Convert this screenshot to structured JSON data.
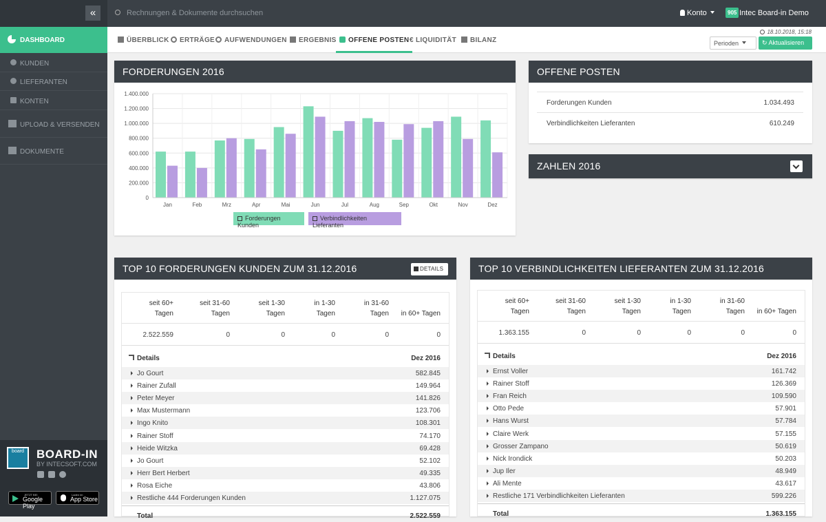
{
  "sidebar": {
    "dashboard": "DASHBOARD",
    "items": [
      "KUNDEN",
      "LIEFERANTEN",
      "KONTEN"
    ],
    "upload": "UPLOAD & VERSENDEN",
    "dokumente": "DOKUMENTE",
    "brand_name": "BOARD-IN",
    "brand_sub": "BY INTECSOFT.COM",
    "logo_text": "board",
    "google_small": "JETZT BEI",
    "google_big": "Google Play",
    "apple_small": "Laden im",
    "apple_big": "App Store"
  },
  "topbar": {
    "search_placeholder": "Rechnungen & Dokumente durchsuchen",
    "konto": "Konto",
    "badge": "905",
    "company": "Intec Board-in Demo"
  },
  "tabs": [
    "ÜBERBLICK",
    "ERTRÄGE",
    "AUFWENDUNGEN",
    "ERGEBNIS",
    "OFFENE POSTEN",
    "€ LIQUIDITÄT",
    "BILANZ"
  ],
  "active_tab": "OFFENE POSTEN",
  "tabbar": {
    "date": "18.10.2018, 15:18",
    "perioden": "Perioden",
    "aktualisieren": "Aktualisieren"
  },
  "forderungen_panel": {
    "title": "FORDERUNGEN 2016"
  },
  "chart_data": {
    "type": "bar",
    "categories": [
      "Jan",
      "Feb",
      "Mrz",
      "Apr",
      "Mai",
      "Jun",
      "Jul",
      "Aug",
      "Sep",
      "Okt",
      "Nov",
      "Dez"
    ],
    "series": [
      {
        "name": "Forderungen Kunden",
        "color": "#80dcb6",
        "values": [
          620000,
          620000,
          770000,
          790000,
          950000,
          1230000,
          900000,
          1070000,
          780000,
          940000,
          1090000,
          1040000
        ]
      },
      {
        "name": "Verbindlichkeiten Lieferanten",
        "color": "#b89de0",
        "values": [
          430000,
          400000,
          800000,
          650000,
          860000,
          1090000,
          1030000,
          1020000,
          990000,
          1030000,
          790000,
          610000
        ]
      }
    ],
    "ylim": [
      0,
      1400000
    ],
    "yticks": [
      "0",
      "200.000",
      "400.000",
      "600.000",
      "800.000",
      "1.000.000",
      "1.200.000",
      "1.400.000"
    ],
    "grid": true,
    "legend": "bottom"
  },
  "offene_posten": {
    "title": "OFFENE POSTEN",
    "rows": [
      {
        "label": "Forderungen Kunden",
        "value": "1.034.493"
      },
      {
        "label": "Verbindlichkeiten Lieferanten",
        "value": "610.249"
      }
    ]
  },
  "zahlen": {
    "title": "ZAHLEN 2016"
  },
  "kunden": {
    "title": "TOP 10 FORDERUNGEN KUNDEN ZUM 31.12.2016",
    "details_btn": "DETAILS",
    "age_headers": [
      [
        "seit 60+",
        "Tagen"
      ],
      [
        "seit 31-60",
        "Tagen"
      ],
      [
        "seit 1-30",
        "Tagen"
      ],
      [
        "in 1-30",
        "Tagen"
      ],
      [
        "in 31-60",
        "Tagen"
      ],
      [
        "",
        "in 60+ Tagen"
      ]
    ],
    "age_values": [
      "2.522.559",
      "0",
      "0",
      "0",
      "0",
      "0"
    ],
    "details_label": "Details",
    "details_col": "Dez 2016",
    "rows": [
      {
        "name": "Jo Gourt",
        "value": "582.845"
      },
      {
        "name": "Rainer Zufall",
        "value": "149.964"
      },
      {
        "name": "Peter Meyer",
        "value": "141.826"
      },
      {
        "name": "Max Mustermann",
        "value": "123.706"
      },
      {
        "name": "Ingo Knito",
        "value": "108.301"
      },
      {
        "name": "Rainer Stoff",
        "value": "74.170"
      },
      {
        "name": "Heide Witzka",
        "value": "69.428"
      },
      {
        "name": "Jo Gourt",
        "value": "52.102"
      },
      {
        "name": "Herr Bert Herbert",
        "value": "49.335"
      },
      {
        "name": "Rosa Eiche",
        "value": "43.806"
      },
      {
        "name": "Restliche 444 Forderungen Kunden",
        "value": "1.127.075"
      }
    ],
    "total_label": "Total",
    "total": "2.522.559"
  },
  "lieferanten": {
    "title": "TOP 10 VERBINDLICHKEITEN LIEFERANTEN ZUM 31.12.2016",
    "age_headers": [
      [
        "seit 60+",
        "Tagen"
      ],
      [
        "seit 31-60",
        "Tagen"
      ],
      [
        "seit 1-30",
        "Tagen"
      ],
      [
        "in 1-30",
        "Tagen"
      ],
      [
        "in 31-60",
        "Tagen"
      ],
      [
        "",
        "in 60+ Tagen"
      ]
    ],
    "age_values": [
      "1.363.155",
      "0",
      "0",
      "0",
      "0",
      "0"
    ],
    "details_label": "Details",
    "details_col": "Dez 2016",
    "rows": [
      {
        "name": "Ernst Voller",
        "value": "161.742"
      },
      {
        "name": "Rainer Stoff",
        "value": "126.369"
      },
      {
        "name": "Fran Reich",
        "value": "109.590"
      },
      {
        "name": "Otto Pede",
        "value": "57.901"
      },
      {
        "name": "Hans Wurst",
        "value": "57.784"
      },
      {
        "name": "Claire Werk",
        "value": "57.155"
      },
      {
        "name": "Grosser Zampano",
        "value": "50.619"
      },
      {
        "name": "Nick Irondick",
        "value": "50.203"
      },
      {
        "name": "Jup Iler",
        "value": "48.949"
      },
      {
        "name": "Ali Mente",
        "value": "43.617"
      },
      {
        "name": "Restliche 171 Verbindlichkeiten Lieferanten",
        "value": "599.226"
      }
    ],
    "total_label": "Total",
    "total": "1.363.155"
  }
}
